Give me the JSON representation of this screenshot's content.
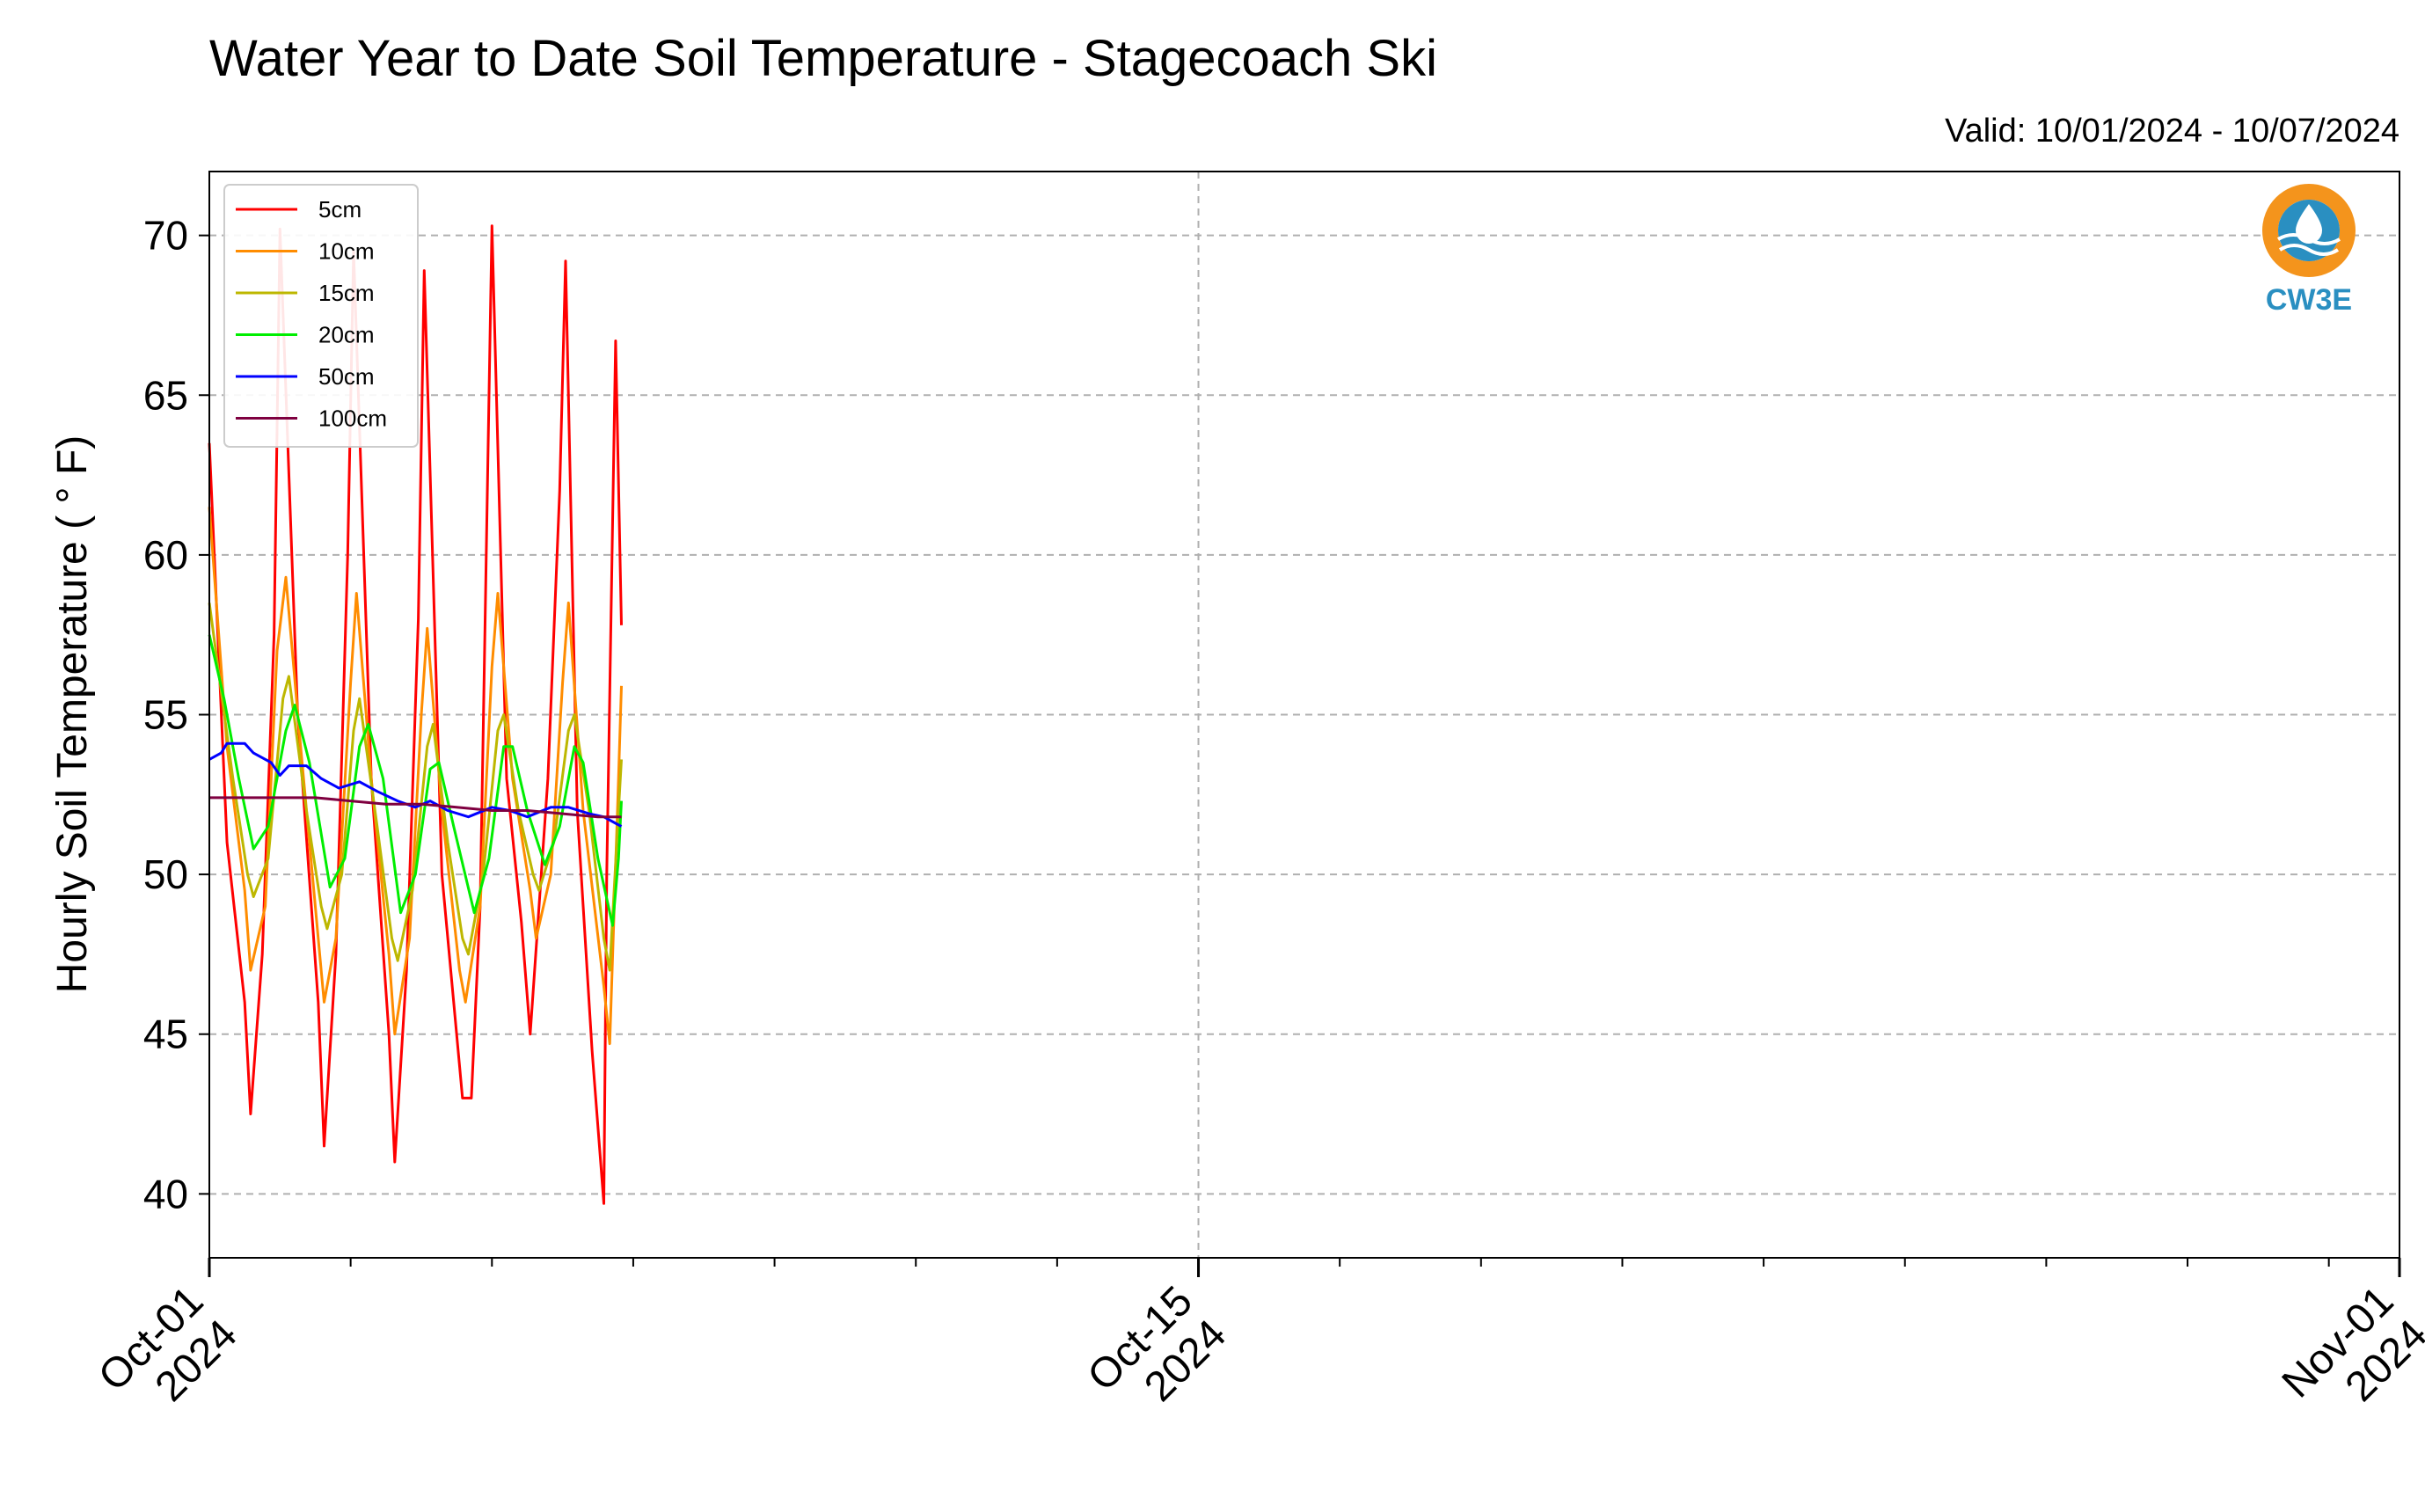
{
  "chart_data": {
    "type": "line",
    "title": "Water Year to Date Soil Temperature - Stagecoach Ski",
    "valid": "Valid: 10/01/2024 - 10/07/2024",
    "ylabel": "Hourly Soil Temperature ( ° F)",
    "ylim": [
      38,
      72
    ],
    "yticks": [
      40,
      45,
      50,
      55,
      60,
      65,
      70
    ],
    "xlim": [
      "2024-10-01",
      "2024-11-01"
    ],
    "xtick_labels": [
      {
        "date": "2024-10-01",
        "line1": "Oct-01",
        "line2": "2024"
      },
      {
        "date": "2024-10-15",
        "line1": "Oct-15",
        "line2": "2024"
      },
      {
        "date": "2024-11-01",
        "line1": "Nov-01",
        "line2": "2024"
      }
    ],
    "grid": true,
    "legend_position": "top-left",
    "series": [
      {
        "name": "5cm",
        "color": "#ff0000",
        "x": [
          "2024-10-01 00:00",
          "2024-10-01 06:00",
          "2024-10-01 12:00",
          "2024-10-01 14:00",
          "2024-10-01 18:00",
          "2024-10-01 22:00",
          "2024-10-02 00:00",
          "2024-10-02 06:00",
          "2024-10-02 13:00",
          "2024-10-02 15:00",
          "2024-10-02 19:00",
          "2024-10-02 23:00",
          "2024-10-03 01:00",
          "2024-10-03 07:00",
          "2024-10-03 13:00",
          "2024-10-03 15:00",
          "2024-10-03 19:00",
          "2024-10-03 23:00",
          "2024-10-04 01:00",
          "2024-10-04 07:00",
          "2024-10-04 13:00",
          "2024-10-04 14:00",
          "2024-10-04 17:00",
          "2024-10-04 20:00",
          "2024-10-05 00:00",
          "2024-10-05 05:00",
          "2024-10-05 10:00",
          "2024-10-05 13:00",
          "2024-10-05 19:00",
          "2024-10-05 23:00",
          "2024-10-06 01:00",
          "2024-10-06 05:00",
          "2024-10-06 10:00",
          "2024-10-06 14:00",
          "2024-10-06 15:00",
          "2024-10-06 18:00",
          "2024-10-06 20:00"
        ],
        "y": [
          63.5,
          51,
          46,
          42.5,
          47.5,
          57.5,
          70.2,
          55,
          46,
          41.5,
          47.5,
          60,
          69.5,
          53,
          45,
          41,
          47,
          58,
          68.9,
          50,
          44,
          43,
          43,
          49,
          70.3,
          53,
          48.5,
          45,
          53,
          62,
          69.2,
          52,
          44.5,
          39.7,
          50,
          66.7,
          57.8
        ]
      },
      {
        "name": "10cm",
        "color": "#ff8c00",
        "x": [
          "2024-10-01 00:00",
          "2024-10-01 06:00",
          "2024-10-01 12:00",
          "2024-10-01 14:00",
          "2024-10-01 19:00",
          "2024-10-01 23:00",
          "2024-10-02 02:00",
          "2024-10-02 07:00",
          "2024-10-02 13:00",
          "2024-10-02 15:00",
          "2024-10-02 19:00",
          "2024-10-03 00:00",
          "2024-10-03 02:00",
          "2024-10-03 07:00",
          "2024-10-03 13:00",
          "2024-10-03 15:00",
          "2024-10-03 20:00",
          "2024-10-04 00:00",
          "2024-10-04 02:00",
          "2024-10-04 07:00",
          "2024-10-04 13:00",
          "2024-10-04 15:00",
          "2024-10-04 20:00",
          "2024-10-05 00:00",
          "2024-10-05 02:00",
          "2024-10-05 07:00",
          "2024-10-05 13:00",
          "2024-10-05 15:00",
          "2024-10-05 20:00",
          "2024-10-06 00:00",
          "2024-10-06 02:00",
          "2024-10-06 07:00",
          "2024-10-06 14:00",
          "2024-10-06 16:00",
          "2024-10-06 19:00",
          "2024-10-06 20:00"
        ],
        "y": [
          61.5,
          54,
          49.5,
          47,
          49,
          57,
          59.3,
          54,
          48,
          46,
          48,
          56,
          58.8,
          53,
          47.5,
          45,
          48,
          55,
          57.7,
          52,
          47,
          46,
          49,
          56.5,
          58.8,
          53,
          49.5,
          48,
          50,
          56,
          58.5,
          52,
          46.5,
          44.7,
          53,
          55.9
        ]
      },
      {
        "name": "15cm",
        "color": "#bdb700",
        "x": [
          "2024-10-01 00:00",
          "2024-10-01 08:00",
          "2024-10-01 13:00",
          "2024-10-01 15:00",
          "2024-10-01 20:00",
          "2024-10-02 01:00",
          "2024-10-02 03:00",
          "2024-10-02 09:00",
          "2024-10-02 14:00",
          "2024-10-02 16:00",
          "2024-10-02 21:00",
          "2024-10-03 01:00",
          "2024-10-03 03:00",
          "2024-10-03 09:00",
          "2024-10-03 14:00",
          "2024-10-03 16:00",
          "2024-10-03 21:00",
          "2024-10-04 02:00",
          "2024-10-04 04:00",
          "2024-10-04 09:00",
          "2024-10-04 14:00",
          "2024-10-04 16:00",
          "2024-10-04 21:00",
          "2024-10-05 02:00",
          "2024-10-05 04:00",
          "2024-10-05 09:00",
          "2024-10-05 14:00",
          "2024-10-05 16:00",
          "2024-10-05 21:00",
          "2024-10-06 02:00",
          "2024-10-06 04:00",
          "2024-10-06 09:00",
          "2024-10-06 14:00",
          "2024-10-06 16:00",
          "2024-10-06 19:00",
          "2024-10-06 20:00"
        ],
        "y": [
          58.5,
          53,
          50,
          49.3,
          50.5,
          55.5,
          56.2,
          52,
          49,
          48.3,
          50,
          54.5,
          55.5,
          51.5,
          48,
          47.3,
          49.5,
          54,
          54.7,
          51,
          48,
          47.5,
          50,
          54.5,
          55,
          52,
          50,
          49.5,
          51,
          54.5,
          55,
          52,
          48,
          47,
          52,
          53.6
        ]
      },
      {
        "name": "20cm",
        "color": "#00ee00",
        "x": [
          "2024-10-01 00:00",
          "2024-10-01 05:00",
          "2024-10-01 10:00",
          "2024-10-01 15:00",
          "2024-10-01 20:00",
          "2024-10-02 02:00",
          "2024-10-02 05:00",
          "2024-10-02 10:00",
          "2024-10-02 17:00",
          "2024-10-02 22:00",
          "2024-10-03 03:00",
          "2024-10-03 06:00",
          "2024-10-03 11:00",
          "2024-10-03 17:00",
          "2024-10-03 22:00",
          "2024-10-04 03:00",
          "2024-10-04 06:00",
          "2024-10-04 11:00",
          "2024-10-04 18:00",
          "2024-10-04 23:00",
          "2024-10-05 04:00",
          "2024-10-05 07:00",
          "2024-10-05 12:00",
          "2024-10-05 18:00",
          "2024-10-05 23:00",
          "2024-10-06 04:00",
          "2024-10-06 07:00",
          "2024-10-06 12:00",
          "2024-10-06 17:00",
          "2024-10-06 19:00",
          "2024-10-06 20:00"
        ],
        "y": [
          57.5,
          55.5,
          53,
          50.8,
          51.5,
          54.5,
          55.3,
          53.5,
          49.6,
          50.5,
          54,
          54.7,
          53,
          48.8,
          50,
          53.3,
          53.5,
          51.5,
          48.8,
          50.5,
          54,
          54,
          52,
          50.3,
          51.5,
          54,
          53.5,
          50.5,
          48.4,
          50.5,
          52.3
        ]
      },
      {
        "name": "50cm",
        "color": "#0000ff",
        "x": [
          "2024-10-01 00:00",
          "2024-10-01 04:00",
          "2024-10-01 06:00",
          "2024-10-01 12:00",
          "2024-10-01 15:00",
          "2024-10-01 21:00",
          "2024-10-02 00:00",
          "2024-10-02 03:00",
          "2024-10-02 09:00",
          "2024-10-02 14:00",
          "2024-10-02 20:00",
          "2024-10-03 03:00",
          "2024-10-03 09:00",
          "2024-10-03 16:00",
          "2024-10-03 22:00",
          "2024-10-04 03:00",
          "2024-10-04 09:00",
          "2024-10-04 16:00",
          "2024-10-05 00:00",
          "2024-10-05 06:00",
          "2024-10-05 12:00",
          "2024-10-05 20:00",
          "2024-10-06 02:00",
          "2024-10-06 09:00",
          "2024-10-06 14:00",
          "2024-10-06 18:00",
          "2024-10-06 20:00"
        ],
        "y": [
          53.6,
          53.8,
          54.1,
          54.1,
          53.8,
          53.5,
          53.1,
          53.4,
          53.4,
          53.0,
          52.7,
          52.9,
          52.6,
          52.3,
          52.1,
          52.3,
          52.0,
          51.8,
          52.1,
          52.0,
          51.8,
          52.1,
          52.1,
          51.9,
          51.8,
          51.6,
          51.5
        ]
      },
      {
        "name": "100cm",
        "color": "#7f0040",
        "x": [
          "2024-10-01 00:00",
          "2024-10-01 12:00",
          "2024-10-02 00:00",
          "2024-10-02 12:00",
          "2024-10-03 00:00",
          "2024-10-03 12:00",
          "2024-10-04 00:00",
          "2024-10-04 12:00",
          "2024-10-05 00:00",
          "2024-10-05 12:00",
          "2024-10-06 00:00",
          "2024-10-06 12:00",
          "2024-10-06 20:00"
        ],
        "y": [
          52.4,
          52.4,
          52.4,
          52.4,
          52.3,
          52.2,
          52.2,
          52.1,
          52.0,
          52.0,
          51.9,
          51.8,
          51.8
        ]
      }
    ]
  },
  "logo": {
    "text": "CW3E",
    "color_orange": "#f4941c",
    "color_blue": "#2a8fc1"
  }
}
